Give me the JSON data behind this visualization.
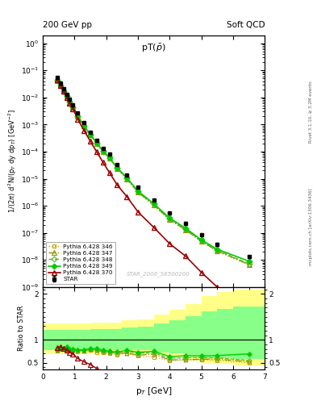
{
  "title_top_left": "200 GeV pp",
  "title_top_right": "Soft QCD",
  "plot_title": "pT($\\bar{p}$)",
  "ylabel_main": "1/(2$\\pi$) d$^2$N/(p$_T$ dy dp$_T$) [GeV$^{-2}$]",
  "ylabel_ratio": "Ratio to STAR",
  "xlabel": "p$_T$ [GeV]",
  "watermark": "STAR_2006_S6500200",
  "right_label_top": "Rivet 3.1.10, ≥ 3.2M events",
  "right_label_bot": "mcplots.cern.ch [arXiv:1306.3436]",
  "star_x": [
    0.45,
    0.55,
    0.65,
    0.75,
    0.85,
    0.95,
    1.1,
    1.3,
    1.5,
    1.7,
    1.9,
    2.1,
    2.35,
    2.65,
    3.0,
    3.5,
    4.0,
    4.5,
    5.0,
    5.5,
    6.5
  ],
  "star_y": [
    0.055,
    0.033,
    0.021,
    0.013,
    0.0085,
    0.0055,
    0.0027,
    0.00115,
    0.00052,
    0.00026,
    0.000135,
    8e-05,
    3.4e-05,
    1.4e-05,
    4.8e-06,
    1.6e-06,
    5.5e-07,
    2.3e-07,
    8.5e-08,
    3.8e-08,
    1.3e-08
  ],
  "star_yerr": [
    0.004,
    0.002,
    0.0013,
    0.0008,
    0.0005,
    0.0003,
    0.00015,
    7e-05,
    3e-05,
    1.5e-05,
    8e-06,
    5e-06,
    2.2e-06,
    9e-07,
    3e-07,
    1.1e-07,
    4e-08,
    1.8e-08,
    7e-09,
    4e-09,
    1.5e-09
  ],
  "p346_x": [
    0.45,
    0.55,
    0.65,
    0.75,
    0.85,
    0.95,
    1.1,
    1.3,
    1.5,
    1.7,
    1.9,
    2.1,
    2.35,
    2.65,
    3.0,
    3.5,
    4.0,
    4.5,
    5.0,
    5.5,
    6.5
  ],
  "p346_y": [
    0.042,
    0.026,
    0.017,
    0.01,
    0.0066,
    0.0043,
    0.002,
    0.00087,
    0.0004,
    0.00019,
    9.8e-05,
    5.6e-05,
    2.3e-05,
    9.8e-06,
    3.1e-06,
    1e-06,
    3e-07,
    1.3e-07,
    4.8e-08,
    2.1e-08,
    6.5e-09
  ],
  "p347_x": [
    0.45,
    0.55,
    0.65,
    0.75,
    0.85,
    0.95,
    1.1,
    1.3,
    1.5,
    1.7,
    1.9,
    2.1,
    2.35,
    2.65,
    3.0,
    3.5,
    4.0,
    4.5,
    5.0,
    5.5,
    6.5
  ],
  "p347_y": [
    0.043,
    0.027,
    0.017,
    0.011,
    0.0067,
    0.0043,
    0.0021,
    0.00088,
    0.00041,
    0.0002,
    0.0001,
    5.8e-05,
    2.4e-05,
    1e-05,
    3.2e-06,
    1.1e-06,
    3.1e-07,
    1.3e-07,
    4.9e-08,
    2.2e-08,
    6.8e-09
  ],
  "p348_x": [
    0.45,
    0.55,
    0.65,
    0.75,
    0.85,
    0.95,
    1.1,
    1.3,
    1.5,
    1.7,
    1.9,
    2.1,
    2.35,
    2.65,
    3.0,
    3.5,
    4.0,
    4.5,
    5.0,
    5.5,
    6.5
  ],
  "p348_y": [
    0.043,
    0.027,
    0.017,
    0.011,
    0.0068,
    0.0044,
    0.0021,
    0.00089,
    0.00041,
    0.0002,
    0.000102,
    5.9e-05,
    2.5e-05,
    1.05e-05,
    3.4e-06,
    1.15e-06,
    3.3e-07,
    1.4e-07,
    5.2e-08,
    2.3e-08,
    7.2e-09
  ],
  "p349_x": [
    0.45,
    0.55,
    0.65,
    0.75,
    0.85,
    0.95,
    1.1,
    1.3,
    1.5,
    1.7,
    1.9,
    2.1,
    2.35,
    2.65,
    3.0,
    3.5,
    4.0,
    4.5,
    5.0,
    5.5,
    6.5
  ],
  "p349_y": [
    0.044,
    0.027,
    0.017,
    0.011,
    0.0068,
    0.0044,
    0.0021,
    0.0009,
    0.00042,
    0.00021,
    0.000105,
    6e-05,
    2.5e-05,
    1.08e-05,
    3.5e-06,
    1.2e-06,
    3.5e-07,
    1.5e-07,
    5.5e-08,
    2.5e-08,
    9e-09
  ],
  "p370_x": [
    0.45,
    0.55,
    0.65,
    0.75,
    0.85,
    0.95,
    1.1,
    1.3,
    1.5,
    1.7,
    1.9,
    2.1,
    2.35,
    2.65,
    3.0,
    3.5,
    4.0,
    4.5,
    5.0,
    5.5,
    6.5
  ],
  "p370_y": [
    0.046,
    0.028,
    0.017,
    0.01,
    0.0062,
    0.0038,
    0.0016,
    0.0006,
    0.00024,
    9.8e-05,
    4e-05,
    1.7e-05,
    5.8e-06,
    2.2e-06,
    6e-07,
    1.6e-07,
    4e-08,
    1.4e-08,
    3.5e-09,
    1e-09,
    2.5e-10
  ],
  "color_346": "#c8a000",
  "color_347": "#909000",
  "color_348": "#60b030",
  "color_349": "#00cc00",
  "color_370": "#990000",
  "color_star": "#000000",
  "band_x_edges": [
    0.0,
    0.5,
    1.0,
    1.5,
    2.0,
    2.5,
    3.0,
    3.5,
    4.0,
    4.5,
    5.0,
    5.5,
    6.0,
    7.0
  ],
  "yellow_lo": [
    0.68,
    0.68,
    0.68,
    0.68,
    0.68,
    0.68,
    0.68,
    0.65,
    0.6,
    0.55,
    0.5,
    0.48,
    0.45,
    0.45
  ],
  "yellow_hi": [
    1.35,
    1.35,
    1.35,
    1.38,
    1.38,
    1.42,
    1.45,
    1.55,
    1.65,
    1.78,
    1.95,
    2.05,
    2.1,
    2.1
  ],
  "green_lo": [
    0.78,
    0.78,
    0.78,
    0.78,
    0.78,
    0.78,
    0.78,
    0.73,
    0.7,
    0.65,
    0.62,
    0.6,
    0.58,
    0.58
  ],
  "green_hi": [
    1.22,
    1.22,
    1.22,
    1.24,
    1.24,
    1.26,
    1.28,
    1.35,
    1.42,
    1.52,
    1.62,
    1.68,
    1.72,
    1.72
  ],
  "ylim_main": [
    1e-09,
    2.0
  ],
  "ylim_ratio": [
    0.35,
    2.15
  ],
  "xlim": [
    0.0,
    7.0
  ],
  "ratio_yticks": [
    0.5,
    1.0,
    2.0
  ],
  "ratio_yticklabels": [
    "0.5",
    "1",
    "2"
  ]
}
